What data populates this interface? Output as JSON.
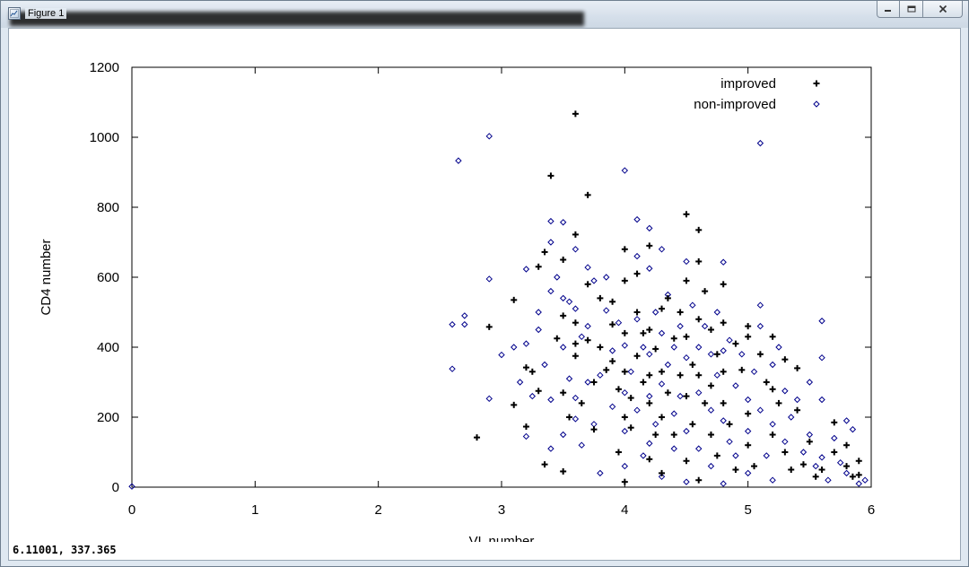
{
  "window": {
    "title": "Figure 1",
    "controls": [
      "minimize",
      "maximize",
      "close"
    ]
  },
  "status": {
    "coordinates": "6.11001,  337.365"
  },
  "chart_data": {
    "type": "scatter",
    "title": "",
    "xlabel": "VL number",
    "ylabel": "CD4 number",
    "xlim": [
      0,
      6
    ],
    "ylim": [
      0,
      1200
    ],
    "x_ticks": [
      "0",
      "1",
      "2",
      "3",
      "4",
      "5",
      "6"
    ],
    "y_ticks": [
      "0",
      "200",
      "400",
      "600",
      "800",
      "1000",
      "1200"
    ],
    "grid": false,
    "legend_position": "top-right",
    "series": [
      {
        "name": "improved",
        "marker": "plus",
        "color": "#000000",
        "points": [
          [
            2.8,
            142
          ],
          [
            2.9,
            458
          ],
          [
            3.1,
            235
          ],
          [
            3.1,
            535
          ],
          [
            3.2,
            342
          ],
          [
            3.2,
            173
          ],
          [
            3.25,
            330
          ],
          [
            3.3,
            630
          ],
          [
            3.3,
            275
          ],
          [
            3.35,
            672
          ],
          [
            3.35,
            65
          ],
          [
            3.4,
            890
          ],
          [
            3.45,
            425
          ],
          [
            3.5,
            650
          ],
          [
            3.5,
            490
          ],
          [
            3.5,
            45
          ],
          [
            3.5,
            270
          ],
          [
            3.55,
            200
          ],
          [
            3.6,
            1067
          ],
          [
            3.6,
            722
          ],
          [
            3.6,
            470
          ],
          [
            3.6,
            410
          ],
          [
            3.6,
            375
          ],
          [
            3.65,
            240
          ],
          [
            3.7,
            835
          ],
          [
            3.7,
            580
          ],
          [
            3.7,
            420
          ],
          [
            3.75,
            300
          ],
          [
            3.75,
            165
          ],
          [
            3.8,
            540
          ],
          [
            3.8,
            400
          ],
          [
            3.85,
            335
          ],
          [
            3.9,
            530
          ],
          [
            3.9,
            465
          ],
          [
            3.9,
            360
          ],
          [
            3.95,
            280
          ],
          [
            3.95,
            100
          ],
          [
            4.0,
            680
          ],
          [
            4.0,
            590
          ],
          [
            4.0,
            440
          ],
          [
            4.0,
            330
          ],
          [
            4.0,
            200
          ],
          [
            4.0,
            15
          ],
          [
            4.05,
            255
          ],
          [
            4.05,
            170
          ],
          [
            4.1,
            610
          ],
          [
            4.1,
            500
          ],
          [
            4.1,
            375
          ],
          [
            4.15,
            440
          ],
          [
            4.15,
            300
          ],
          [
            4.2,
            690
          ],
          [
            4.2,
            450
          ],
          [
            4.2,
            320
          ],
          [
            4.2,
            240
          ],
          [
            4.2,
            80
          ],
          [
            4.25,
            395
          ],
          [
            4.25,
            150
          ],
          [
            4.3,
            510
          ],
          [
            4.3,
            330
          ],
          [
            4.3,
            200
          ],
          [
            4.3,
            40
          ],
          [
            4.35,
            540
          ],
          [
            4.35,
            270
          ],
          [
            4.4,
            425
          ],
          [
            4.4,
            150
          ],
          [
            4.45,
            500
          ],
          [
            4.45,
            320
          ],
          [
            4.5,
            780
          ],
          [
            4.5,
            590
          ],
          [
            4.5,
            430
          ],
          [
            4.5,
            260
          ],
          [
            4.5,
            75
          ],
          [
            4.55,
            350
          ],
          [
            4.55,
            180
          ],
          [
            4.6,
            735
          ],
          [
            4.6,
            645
          ],
          [
            4.6,
            480
          ],
          [
            4.6,
            320
          ],
          [
            4.6,
            20
          ],
          [
            4.65,
            560
          ],
          [
            4.65,
            240
          ],
          [
            4.7,
            450
          ],
          [
            4.7,
            290
          ],
          [
            4.7,
            150
          ],
          [
            4.75,
            380
          ],
          [
            4.75,
            90
          ],
          [
            4.8,
            580
          ],
          [
            4.8,
            470
          ],
          [
            4.8,
            330
          ],
          [
            4.8,
            240
          ],
          [
            4.85,
            180
          ],
          [
            4.9,
            410
          ],
          [
            4.9,
            50
          ],
          [
            4.95,
            335
          ],
          [
            5.0,
            460
          ],
          [
            5.0,
            430
          ],
          [
            5.0,
            210
          ],
          [
            5.0,
            120
          ],
          [
            5.05,
            60
          ],
          [
            5.1,
            380
          ],
          [
            5.15,
            300
          ],
          [
            5.2,
            430
          ],
          [
            5.2,
            280
          ],
          [
            5.2,
            150
          ],
          [
            5.25,
            240
          ],
          [
            5.3,
            365
          ],
          [
            5.3,
            100
          ],
          [
            5.35,
            50
          ],
          [
            5.4,
            340
          ],
          [
            5.4,
            220
          ],
          [
            5.45,
            65
          ],
          [
            5.5,
            130
          ],
          [
            5.55,
            30
          ],
          [
            5.6,
            50
          ],
          [
            5.7,
            185
          ],
          [
            5.7,
            100
          ],
          [
            5.8,
            120
          ],
          [
            5.8,
            60
          ],
          [
            5.85,
            30
          ],
          [
            5.9,
            75
          ],
          [
            5.9,
            35
          ]
        ]
      },
      {
        "name": "non-improved",
        "marker": "diamond",
        "color": "#00008b",
        "points": [
          [
            0.0,
            2
          ],
          [
            2.6,
            338
          ],
          [
            2.6,
            465
          ],
          [
            2.65,
            933
          ],
          [
            2.7,
            465
          ],
          [
            2.7,
            490
          ],
          [
            2.9,
            1003
          ],
          [
            2.9,
            595
          ],
          [
            2.9,
            253
          ],
          [
            3.0,
            378
          ],
          [
            3.1,
            400
          ],
          [
            3.15,
            300
          ],
          [
            3.2,
            145
          ],
          [
            3.2,
            623
          ],
          [
            3.2,
            410
          ],
          [
            3.25,
            260
          ],
          [
            3.3,
            500
          ],
          [
            3.3,
            450
          ],
          [
            3.35,
            350
          ],
          [
            3.4,
            760
          ],
          [
            3.4,
            700
          ],
          [
            3.4,
            560
          ],
          [
            3.4,
            250
          ],
          [
            3.4,
            110
          ],
          [
            3.45,
            600
          ],
          [
            3.5,
            757
          ],
          [
            3.5,
            540
          ],
          [
            3.5,
            400
          ],
          [
            3.5,
            150
          ],
          [
            3.55,
            530
          ],
          [
            3.55,
            310
          ],
          [
            3.6,
            680
          ],
          [
            3.6,
            510
          ],
          [
            3.6,
            255
          ],
          [
            3.6,
            195
          ],
          [
            3.65,
            430
          ],
          [
            3.65,
            120
          ],
          [
            3.7,
            628
          ],
          [
            3.7,
            460
          ],
          [
            3.7,
            300
          ],
          [
            3.75,
            590
          ],
          [
            3.75,
            180
          ],
          [
            3.8,
            320
          ],
          [
            3.8,
            40
          ],
          [
            3.85,
            600
          ],
          [
            3.85,
            505
          ],
          [
            3.9,
            390
          ],
          [
            3.9,
            230
          ],
          [
            3.95,
            470
          ],
          [
            4.0,
            905
          ],
          [
            4.0,
            405
          ],
          [
            4.0,
            270
          ],
          [
            4.0,
            160
          ],
          [
            4.0,
            60
          ],
          [
            4.05,
            330
          ],
          [
            4.1,
            765
          ],
          [
            4.1,
            660
          ],
          [
            4.1,
            480
          ],
          [
            4.1,
            220
          ],
          [
            4.15,
            400
          ],
          [
            4.15,
            90
          ],
          [
            4.2,
            740
          ],
          [
            4.2,
            625
          ],
          [
            4.2,
            380
          ],
          [
            4.2,
            260
          ],
          [
            4.2,
            125
          ],
          [
            4.25,
            500
          ],
          [
            4.25,
            180
          ],
          [
            4.3,
            680
          ],
          [
            4.3,
            440
          ],
          [
            4.3,
            295
          ],
          [
            4.3,
            30
          ],
          [
            4.35,
            550
          ],
          [
            4.35,
            350
          ],
          [
            4.4,
            400
          ],
          [
            4.4,
            210
          ],
          [
            4.4,
            110
          ],
          [
            4.45,
            460
          ],
          [
            4.45,
            260
          ],
          [
            4.5,
            645
          ],
          [
            4.5,
            370
          ],
          [
            4.5,
            160
          ],
          [
            4.5,
            15
          ],
          [
            4.55,
            520
          ],
          [
            4.6,
            400
          ],
          [
            4.6,
            270
          ],
          [
            4.6,
            110
          ],
          [
            4.65,
            460
          ],
          [
            4.7,
            380
          ],
          [
            4.7,
            220
          ],
          [
            4.7,
            60
          ],
          [
            4.75,
            500
          ],
          [
            4.75,
            320
          ],
          [
            4.8,
            643
          ],
          [
            4.8,
            390
          ],
          [
            4.8,
            190
          ],
          [
            4.8,
            10
          ],
          [
            4.85,
            420
          ],
          [
            4.85,
            130
          ],
          [
            4.9,
            290
          ],
          [
            4.9,
            90
          ],
          [
            4.95,
            380
          ],
          [
            5.0,
            250
          ],
          [
            5.0,
            160
          ],
          [
            5.0,
            40
          ],
          [
            5.05,
            330
          ],
          [
            5.1,
            983
          ],
          [
            5.1,
            520
          ],
          [
            5.1,
            460
          ],
          [
            5.1,
            220
          ],
          [
            5.15,
            90
          ],
          [
            5.2,
            350
          ],
          [
            5.2,
            180
          ],
          [
            5.2,
            20
          ],
          [
            5.25,
            400
          ],
          [
            5.3,
            275
          ],
          [
            5.3,
            130
          ],
          [
            5.35,
            200
          ],
          [
            5.4,
            250
          ],
          [
            5.45,
            100
          ],
          [
            5.5,
            300
          ],
          [
            5.5,
            150
          ],
          [
            5.55,
            60
          ],
          [
            5.6,
            475
          ],
          [
            5.6,
            370
          ],
          [
            5.6,
            250
          ],
          [
            5.6,
            85
          ],
          [
            5.65,
            20
          ],
          [
            5.7,
            140
          ],
          [
            5.75,
            70
          ],
          [
            5.8,
            190
          ],
          [
            5.8,
            40
          ],
          [
            5.85,
            165
          ],
          [
            5.9,
            10
          ],
          [
            5.95,
            20
          ]
        ]
      }
    ]
  }
}
